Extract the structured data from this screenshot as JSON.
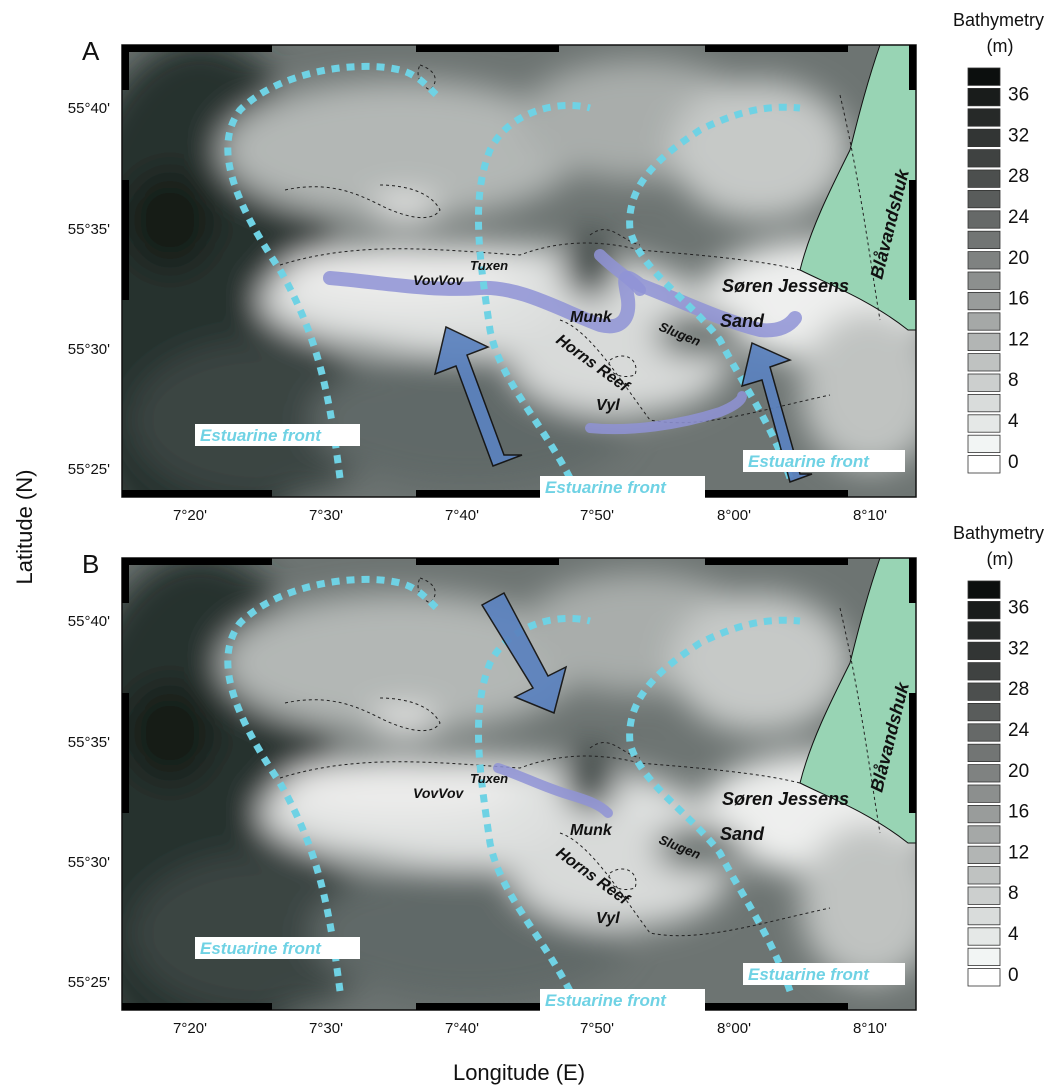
{
  "axes": {
    "y_title": "Latitude (N)",
    "x_title": "Longitude (E)",
    "lat_ticks": [
      "55°40'",
      "55°35'",
      "55°30'",
      "55°25'"
    ],
    "lon_ticks": [
      "7°20'",
      "7°30'",
      "7°40'",
      "7°50'",
      "8°00'",
      "8°10'"
    ]
  },
  "panels": [
    {
      "letter": "A",
      "flow_direction": "northwest",
      "labels": {
        "tuxen": "Tuxen",
        "vovvov": "VovVov",
        "munk": "Munk",
        "slugen": "Slugen",
        "horns_reef": "Horns Reef",
        "vyl": "Vyl",
        "soren_jessens": "Søren Jessens",
        "sand": "Sand",
        "blavandshuk": "Blåvandshuk",
        "front_west": "Estuarine front",
        "front_middle": "Estuarine front",
        "front_east": "Estuarine front"
      }
    },
    {
      "letter": "B",
      "flow_direction": "southeast",
      "labels": {
        "tuxen": "Tuxen",
        "vovvov": "VovVov",
        "munk": "Munk",
        "slugen": "Slugen",
        "horns_reef": "Horns Reef",
        "vyl": "Vyl",
        "soren_jessens": "Søren Jessens",
        "sand": "Sand",
        "blavandshuk": "Blåvandshuk",
        "front_west": "Estuarine front",
        "front_middle": "Estuarine front",
        "front_east": "Estuarine front"
      }
    }
  ],
  "legend": {
    "title_line1": "Bathymetry",
    "title_line2": "(m)",
    "tick_labels": [
      "36",
      "32",
      "28",
      "24",
      "20",
      "16",
      "12",
      "8",
      "4",
      "0"
    ],
    "scale_min_m": 0,
    "scale_max_m": 38
  },
  "colors": {
    "land": "#98d4b4",
    "front": "#6fd2e4",
    "arrow": "#5b82bf",
    "sandbank_highlight": "#8f93d6",
    "deep_water": "#1c2624",
    "shallow_water": "#f2f2f2"
  }
}
